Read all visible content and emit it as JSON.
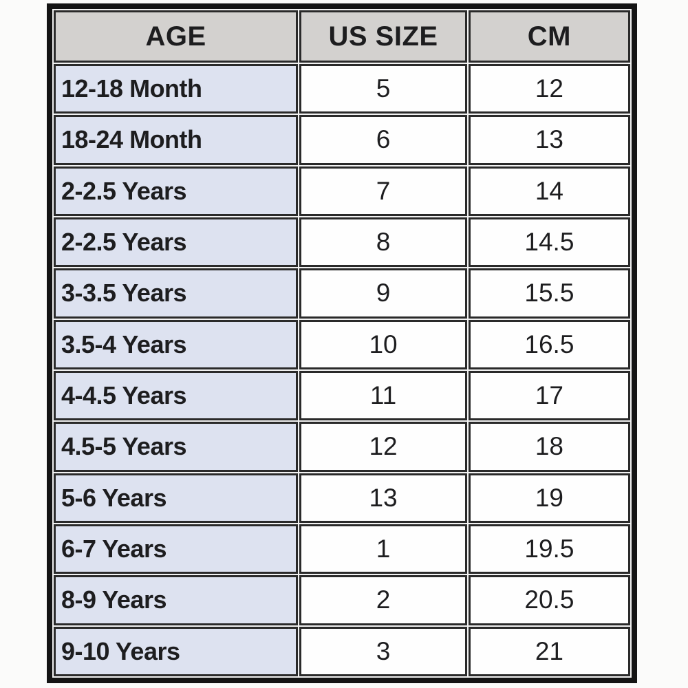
{
  "table": {
    "headers": [
      "AGE",
      "US SIZE",
      "CM"
    ],
    "rows": [
      {
        "age": "12-18 Month",
        "us_size": "5",
        "cm": "12"
      },
      {
        "age": "18-24 Month",
        "us_size": "6",
        "cm": "13"
      },
      {
        "age": "2-2.5 Years",
        "us_size": "7",
        "cm": "14"
      },
      {
        "age": "2-2.5 Years",
        "us_size": "8",
        "cm": "14.5"
      },
      {
        "age": "3-3.5 Years",
        "us_size": "9",
        "cm": "15.5"
      },
      {
        "age": "3.5-4 Years",
        "us_size": "10",
        "cm": "16.5"
      },
      {
        "age": "4-4.5 Years",
        "us_size": "11",
        "cm": "17"
      },
      {
        "age": "4.5-5 Years",
        "us_size": "12",
        "cm": "18"
      },
      {
        "age": "5-6 Years",
        "us_size": "13",
        "cm": "19"
      },
      {
        "age": "6-7 Years",
        "us_size": "1",
        "cm": "19.5"
      },
      {
        "age": "8-9 Years",
        "us_size": "2",
        "cm": "20.5"
      },
      {
        "age": "9-10 Years",
        "us_size": "3",
        "cm": "21"
      }
    ]
  },
  "colors": {
    "page_background": "#fbfbfa",
    "header_background": "#d3d1cf",
    "age_column_background": "#dde2f0",
    "cell_background": "#fefefe",
    "border": "#1c1c1c",
    "text": "#1d1d1f"
  },
  "chart_data": {
    "type": "table",
    "title": "",
    "columns": [
      "AGE",
      "US SIZE",
      "CM"
    ],
    "rows": [
      [
        "12-18 Month",
        5,
        12
      ],
      [
        "18-24 Month",
        6,
        13
      ],
      [
        "2-2.5 Years",
        7,
        14
      ],
      [
        "2-2.5 Years",
        8,
        14.5
      ],
      [
        "3-3.5 Years",
        9,
        15.5
      ],
      [
        "3.5-4 Years",
        10,
        16.5
      ],
      [
        "4-4.5 Years",
        11,
        17
      ],
      [
        "4.5-5 Years",
        12,
        18
      ],
      [
        "5-6 Years",
        13,
        19
      ],
      [
        "6-7 Years",
        1,
        19.5
      ],
      [
        "8-9 Years",
        2,
        20.5
      ],
      [
        "9-10 Years",
        3,
        21
      ]
    ]
  }
}
